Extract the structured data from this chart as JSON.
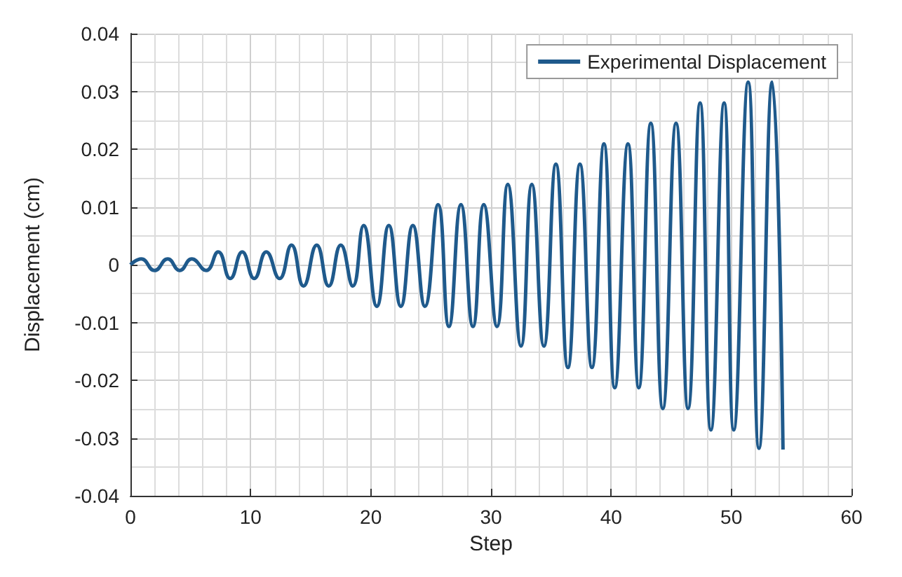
{
  "chart_data": {
    "type": "line",
    "xlabel": "Step",
    "ylabel": "Displacement (cm)",
    "xlim": [
      0,
      60
    ],
    "xticks": [
      0,
      10,
      20,
      30,
      40,
      50,
      60
    ],
    "ylim": [
      -0.04,
      0.04
    ],
    "yticks": [
      -0.04,
      -0.03,
      -0.02,
      -0.01,
      0,
      0.01,
      0.02,
      0.03,
      0.04
    ],
    "grid": true,
    "legend": "top right",
    "marker": "none",
    "line_style": "solid",
    "series": [
      {
        "name": "Experimental Displacement",
        "color": "#1f5a8c",
        "x": [
          0,
          0.9,
          2.0,
          3.1,
          4.1,
          5.1,
          6.3,
          7.3,
          8.3,
          9.3,
          10.3,
          11.3,
          12.4,
          13.4,
          14.4,
          15.5,
          16.5,
          17.5,
          18.5,
          19.4,
          20.5,
          21.5,
          22.5,
          23.5,
          24.5,
          25.6,
          26.5,
          27.5,
          28.5,
          29.4,
          30.5,
          31.4,
          32.5,
          33.4,
          34.4,
          35.4,
          36.4,
          37.4,
          38.4,
          39.4,
          40.3,
          41.4,
          42.3,
          43.3,
          44.3,
          45.4,
          46.4,
          47.4,
          48.3,
          49.4,
          50.2,
          51.4,
          52.3,
          53.4,
          54.3
        ],
        "values": [
          0,
          0.001,
          -0.001,
          0.001,
          -0.001,
          0.001,
          -0.001,
          0.0022,
          -0.0024,
          0.0022,
          -0.0024,
          0.0022,
          -0.0024,
          0.0034,
          -0.0037,
          0.0034,
          -0.0037,
          0.0034,
          -0.0037,
          0.0068,
          -0.0072,
          0.0068,
          -0.0072,
          0.0068,
          -0.0072,
          0.0104,
          -0.0107,
          0.0104,
          -0.0107,
          0.0104,
          -0.0107,
          0.0139,
          -0.0141,
          0.0139,
          -0.0141,
          0.0174,
          -0.0178,
          0.0174,
          -0.0178,
          0.0209,
          -0.0213,
          0.0209,
          -0.0213,
          0.0245,
          -0.0249,
          0.0245,
          -0.0249,
          0.028,
          -0.0286,
          0.028,
          -0.0286,
          0.0316,
          -0.0318,
          0.0316,
          -0.032
        ]
      }
    ]
  }
}
